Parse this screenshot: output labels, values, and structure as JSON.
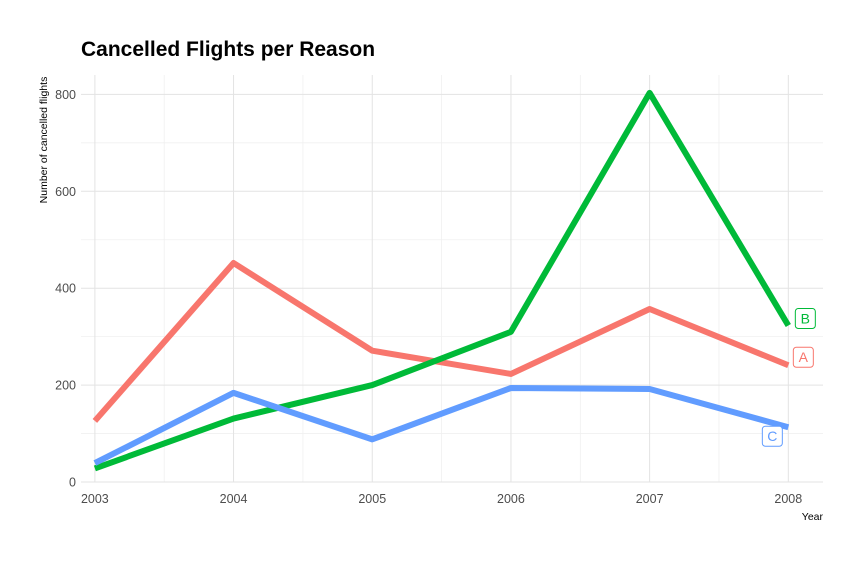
{
  "chart_data": {
    "type": "line",
    "title": "Cancelled Flights per Reason",
    "xlabel": "Year",
    "ylabel": "Number of cancelled flights",
    "x": [
      2003,
      2004,
      2005,
      2006,
      2007,
      2008
    ],
    "x_tick_labels": [
      "2003",
      "2004",
      "2005",
      "2006",
      "2007",
      "2008"
    ],
    "y_ticks": [
      0,
      200,
      400,
      600,
      800
    ],
    "y_tick_labels": [
      "0",
      "200",
      "400",
      "600",
      "800"
    ],
    "xlim": [
      2002.9,
      2008.25
    ],
    "ylim": [
      0,
      840
    ],
    "grid": true,
    "legend": "end-of-line labels",
    "series": [
      {
        "name": "A",
        "color": "#F8766D",
        "values": [
          126,
          452,
          271,
          223,
          357,
          241
        ]
      },
      {
        "name": "B",
        "color": "#00BA38",
        "values": [
          28,
          131,
          200,
          310,
          803,
          323
        ]
      },
      {
        "name": "C",
        "color": "#619CFF",
        "values": [
          39,
          184,
          88,
          194,
          192,
          113
        ]
      }
    ]
  }
}
